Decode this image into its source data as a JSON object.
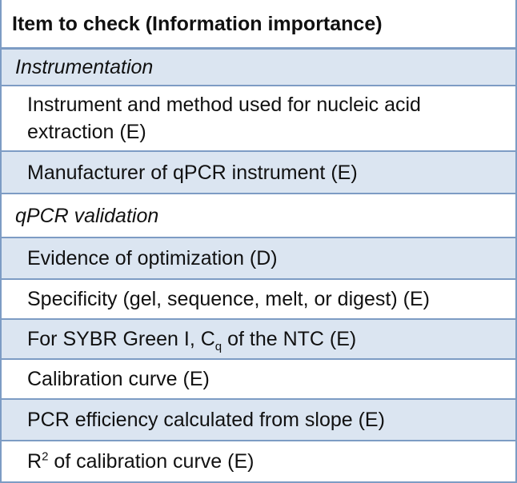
{
  "table": {
    "header": "Item to check (Information importance)",
    "sections": [
      {
        "title": "Instrumentation",
        "items": [
          {
            "text": "Instrument and method used for nucleic acid extraction (E)"
          },
          {
            "text": "Manufacturer of qPCR instrument (E)"
          }
        ]
      },
      {
        "title": "qPCR validation",
        "items": [
          {
            "text": "Evidence of optimization (D)"
          },
          {
            "text": "Specificity (gel, sequence, melt, or digest) (E)"
          },
          {
            "text": "For SYBR Green I, C",
            "sub": "q",
            "after": " of the NTC (E)"
          },
          {
            "text": "Calibration curve (E)"
          },
          {
            "text": "PCR efficiency calculated from slope (E)"
          },
          {
            "text": "R",
            "sup": "2",
            "after": " of calibration curve (E)"
          }
        ]
      }
    ]
  }
}
